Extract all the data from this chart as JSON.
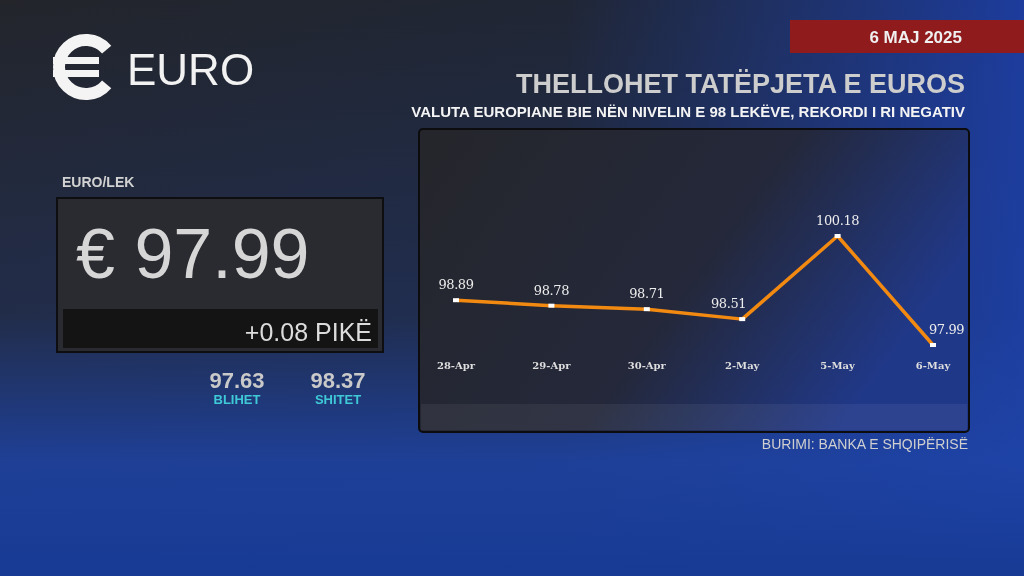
{
  "chart_data": [
    {
      "type": "line",
      "title": "THELLOHET TATËPJETA E EUROS",
      "subtitle": "VALUTA EUROPIANE BIE NËN NIVELIN E 98 LEKËVE, REKORDI I RI NEGATIV",
      "categories": [
        "28-Apr",
        "29-Apr",
        "30-Apr",
        "2-May",
        "5-May",
        "6-May"
      ],
      "values": [
        98.89,
        98.78,
        98.71,
        98.51,
        100.18,
        97.99
      ],
      "color": "#f28a12",
      "data_labels": true,
      "marker": "square",
      "annotations": [
        "EURO",
        "6 MAJ 2025",
        "BURIMI: BANKA E SHQIPËRISË"
      ]
    },
    {
      "type": "other",
      "title": "EURO/LEK",
      "annotations": [
        "€ 97.99",
        "+0.08 PIKË",
        "97.63",
        "BLIHET",
        "98.37",
        "SHITET"
      ]
    }
  ]
}
